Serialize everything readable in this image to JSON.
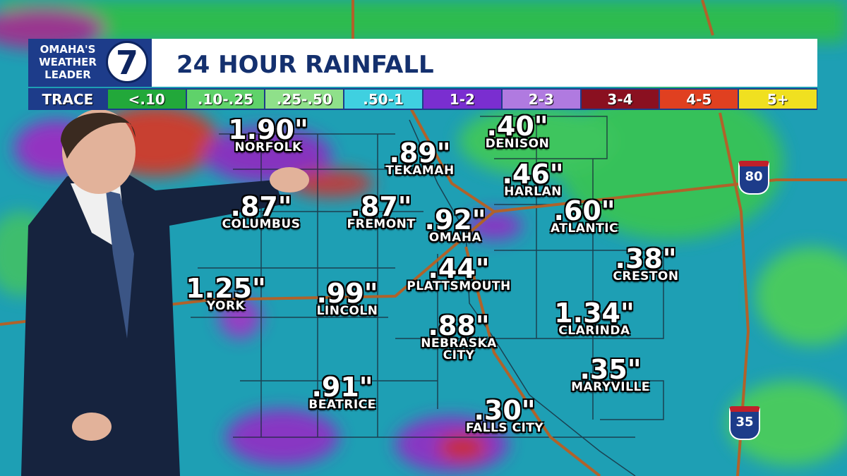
{
  "header": {
    "logo_line1": "OMAHA'S",
    "logo_line2": "WEATHER",
    "logo_line3": "LEADER",
    "logo_number": "7",
    "title": "24 HOUR RAINFALL"
  },
  "legend": [
    "TRACE",
    "<.10",
    ".10-.25",
    ".25-.50",
    ".50-1",
    "1-2",
    "2-3",
    "3-4",
    "4-5",
    "5+"
  ],
  "cities": [
    {
      "amount": "1.90\"",
      "name": "NORFOLK"
    },
    {
      "amount": ".89\"",
      "name": "TEKAMAH"
    },
    {
      "amount": ".40\"",
      "name": "DENISON"
    },
    {
      "amount": ".46\"",
      "name": "HARLAN"
    },
    {
      "amount": ".87\"",
      "name": "COLUMBUS"
    },
    {
      "amount": ".87\"",
      "name": "FREMONT"
    },
    {
      "amount": ".92\"",
      "name": "OMAHA"
    },
    {
      "amount": ".60\"",
      "name": "ATLANTIC"
    },
    {
      "amount": ".44\"",
      "name": "PLATTSMOUTH"
    },
    {
      "amount": ".38\"",
      "name": "CRESTON"
    },
    {
      "amount": "1.25\"",
      "name": "YORK"
    },
    {
      "amount": ".99\"",
      "name": "LINCOLN"
    },
    {
      "amount": "1.34\"",
      "name": "CLARINDA"
    },
    {
      "amount": ".88\"",
      "name": "NEBRASKA CITY"
    },
    {
      "amount": ".35\"",
      "name": "MARYVILLE"
    },
    {
      "amount": ".91\"",
      "name": "BEATRICE"
    },
    {
      "amount": ".30\"",
      "name": "FALLS CITY"
    }
  ],
  "interstates": [
    "80",
    "35"
  ]
}
